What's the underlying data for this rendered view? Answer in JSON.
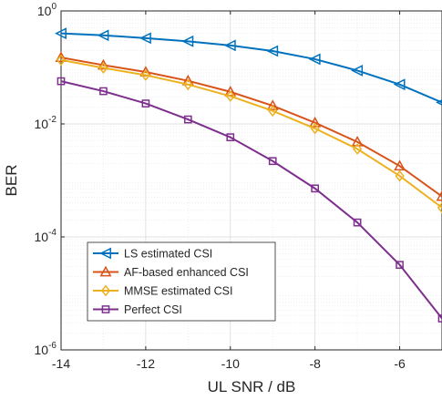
{
  "chart_data": {
    "type": "line",
    "title": "",
    "xlabel": "UL SNR / dB",
    "ylabel": "BER",
    "y_scale": "log",
    "grid": true,
    "legend_position": "bottom-left",
    "xlim": [
      -14,
      -5
    ],
    "ylim": [
      1e-06,
      1
    ],
    "x": [
      -14,
      -13,
      -12,
      -11,
      -10,
      -9,
      -8,
      -7,
      -6,
      -5
    ],
    "x_ticks": [
      -14,
      -12,
      -10,
      -8,
      -6
    ],
    "x_tick_labels": [
      "-14",
      "-12",
      "-10",
      "-8",
      "-6"
    ],
    "y_ticks": [
      1e-06,
      0.0001,
      0.01,
      1
    ],
    "y_tick_labels": [
      {
        "base": "10",
        "exp": "-6"
      },
      {
        "base": "10",
        "exp": "-4"
      },
      {
        "base": "10",
        "exp": "-2"
      },
      {
        "base": "10",
        "exp": "0"
      }
    ],
    "series": [
      {
        "name": "LS estimated CSI",
        "color": "#0072BD",
        "marker": "left-triangle",
        "values": [
          0.4,
          0.37,
          0.33,
          0.29,
          0.245,
          0.195,
          0.14,
          0.088,
          0.05,
          0.024
        ]
      },
      {
        "name": "AF-based enhanced CSI",
        "color": "#D95319",
        "marker": "up-triangle",
        "values": [
          0.15,
          0.11,
          0.083,
          0.058,
          0.037,
          0.021,
          0.0105,
          0.0048,
          0.0018,
          0.00052
        ]
      },
      {
        "name": "MMSE estimated CSI",
        "color": "#EDB120",
        "marker": "diamond",
        "values": [
          0.135,
          0.098,
          0.073,
          0.05,
          0.031,
          0.017,
          0.0083,
          0.0036,
          0.0012,
          0.00033
        ]
      },
      {
        "name": "Perfect CSI",
        "color": "#7E2F8E",
        "marker": "square",
        "values": [
          0.057,
          0.038,
          0.023,
          0.012,
          0.0058,
          0.0022,
          0.00072,
          0.00018,
          3.2e-05,
          3.6e-06
        ]
      }
    ]
  }
}
